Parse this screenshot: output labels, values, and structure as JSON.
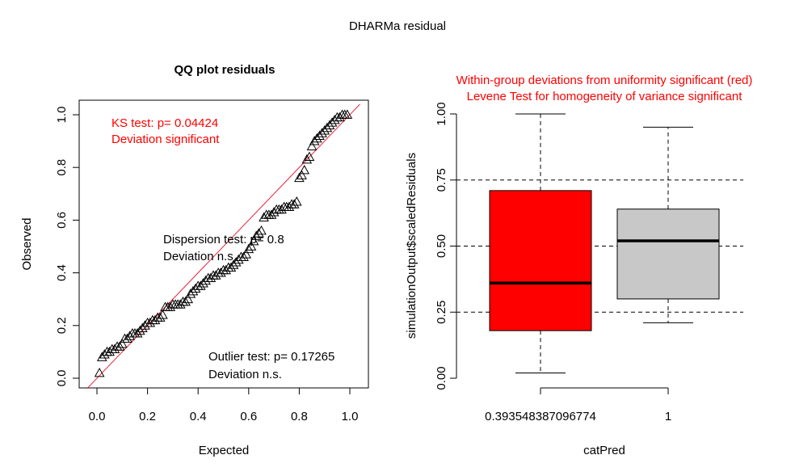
{
  "figure": {
    "title": "DHARMa residual"
  },
  "chart_data": [
    {
      "type": "scatter",
      "title": "QQ plot residuals",
      "xlabel": "Expected",
      "ylabel": "Observed",
      "xlim": [
        0,
        1
      ],
      "ylim": [
        0,
        1
      ],
      "xticks": [
        "0.0",
        "0.2",
        "0.4",
        "0.6",
        "0.8",
        "1.0"
      ],
      "yticks": [
        "0.0",
        "0.2",
        "0.4",
        "0.6",
        "0.8",
        "1.0"
      ],
      "reference_line": "y = x",
      "reference_line_color": "#e8203a",
      "point_marker": "open-triangle",
      "annotations": {
        "ks_line1": "KS test: p= 0.04424",
        "ks_line2": "Deviation  significant",
        "disp_line1": "Dispersion test: p= 0.8",
        "disp_line2": "Deviation  n.s.",
        "out_line1": "Outlier test: p= 0.17265",
        "out_line2": "Deviation  n.s."
      },
      "annotation_colors": {
        "ks": "#ff0000",
        "disp": "#000000",
        "out": "#000000"
      },
      "x": [
        0.01,
        0.02,
        0.03,
        0.04,
        0.05,
        0.06,
        0.07,
        0.08,
        0.09,
        0.1,
        0.11,
        0.12,
        0.13,
        0.14,
        0.15,
        0.16,
        0.17,
        0.18,
        0.19,
        0.2,
        0.21,
        0.22,
        0.23,
        0.24,
        0.25,
        0.26,
        0.27,
        0.28,
        0.29,
        0.3,
        0.31,
        0.32,
        0.33,
        0.34,
        0.35,
        0.36,
        0.37,
        0.38,
        0.39,
        0.4,
        0.41,
        0.42,
        0.43,
        0.44,
        0.45,
        0.46,
        0.47,
        0.48,
        0.49,
        0.5,
        0.51,
        0.52,
        0.53,
        0.54,
        0.55,
        0.56,
        0.57,
        0.58,
        0.59,
        0.6,
        0.61,
        0.62,
        0.63,
        0.64,
        0.65,
        0.66,
        0.67,
        0.68,
        0.69,
        0.7,
        0.71,
        0.72,
        0.73,
        0.74,
        0.75,
        0.76,
        0.77,
        0.78,
        0.79,
        0.8,
        0.81,
        0.82,
        0.83,
        0.84,
        0.85,
        0.86,
        0.87,
        0.88,
        0.89,
        0.9,
        0.91,
        0.92,
        0.93,
        0.94,
        0.95,
        0.96,
        0.97,
        0.98,
        0.99
      ],
      "y": [
        0.02,
        0.08,
        0.09,
        0.1,
        0.1,
        0.11,
        0.11,
        0.12,
        0.12,
        0.13,
        0.15,
        0.15,
        0.16,
        0.17,
        0.17,
        0.17,
        0.18,
        0.19,
        0.2,
        0.21,
        0.21,
        0.22,
        0.22,
        0.23,
        0.23,
        0.24,
        0.27,
        0.27,
        0.27,
        0.28,
        0.28,
        0.28,
        0.28,
        0.29,
        0.29,
        0.3,
        0.32,
        0.33,
        0.34,
        0.35,
        0.35,
        0.36,
        0.37,
        0.38,
        0.38,
        0.39,
        0.39,
        0.4,
        0.4,
        0.41,
        0.41,
        0.42,
        0.42,
        0.43,
        0.44,
        0.45,
        0.46,
        0.46,
        0.47,
        0.49,
        0.5,
        0.52,
        0.54,
        0.55,
        0.56,
        0.61,
        0.62,
        0.62,
        0.62,
        0.63,
        0.64,
        0.64,
        0.64,
        0.65,
        0.65,
        0.65,
        0.66,
        0.66,
        0.67,
        0.76,
        0.77,
        0.79,
        0.83,
        0.84,
        0.88,
        0.9,
        0.91,
        0.92,
        0.93,
        0.94,
        0.95,
        0.96,
        0.97,
        0.98,
        0.99,
        0.99,
        1.0,
        1.0,
        1.0
      ]
    },
    {
      "type": "box",
      "title_line1": "Within-group deviations from uniformity significant (red)",
      "title_line2": "Levene Test for homogeneity of variance significant",
      "title_color": "#ff0000",
      "xlabel": "catPred",
      "ylabel": "simulationOutput$scaledResiduals",
      "ylim": [
        0,
        1
      ],
      "yticks": [
        "0.00",
        "0.25",
        "0.50",
        "0.75",
        "1.00"
      ],
      "reference_lines": [
        0.25,
        0.5,
        0.75
      ],
      "categories": [
        "0.393548387096774",
        "1"
      ],
      "boxes": [
        {
          "category": "0.393548387096774",
          "whisker_low": 0.02,
          "q1": 0.18,
          "median": 0.36,
          "q3": 0.71,
          "whisker_high": 1.0,
          "color": "#ff0000"
        },
        {
          "category": "1",
          "whisker_low": 0.21,
          "q1": 0.3,
          "median": 0.52,
          "q3": 0.64,
          "whisker_high": 0.95,
          "color": "#c8c8c8"
        }
      ]
    }
  ]
}
